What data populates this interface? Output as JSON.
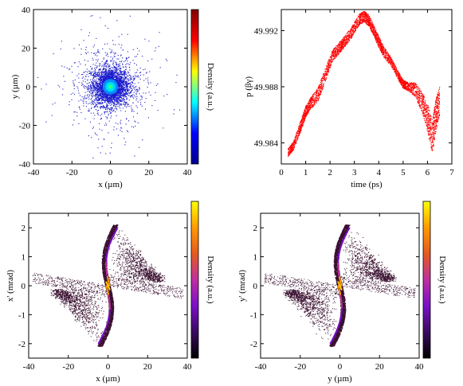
{
  "chart_data": [
    {
      "type": "scatter",
      "panel": "top-left",
      "title": "",
      "xlabel": "x (µm)",
      "ylabel": "y (µm)",
      "xlim": [
        -40,
        40
      ],
      "ylim": [
        -40,
        40
      ],
      "xticks": [
        "-40",
        "-20",
        "0",
        "20",
        "40"
      ],
      "yticks": [
        "-40",
        "-20",
        "0",
        "20",
        "40"
      ],
      "colorbar": {
        "label": "Density (a.u.)",
        "colormap": "jet",
        "colors": [
          "#00008f",
          "#0000ff",
          "#00ffff",
          "#ffff00",
          "#ff0000",
          "#800000"
        ]
      },
      "point_color": "#1a1acc",
      "distribution": {
        "center": [
          0,
          0
        ],
        "core_sigma": 3,
        "halo_sigma": 9,
        "extent": 38
      }
    },
    {
      "type": "scatter",
      "panel": "top-right",
      "title": "",
      "xlabel": "time (ps)",
      "ylabel": "p (βγ)",
      "xlim": [
        0,
        7
      ],
      "ylim": [
        49.9825,
        49.9935
      ],
      "xticks": [
        "0",
        "1",
        "2",
        "3",
        "4",
        "5",
        "6",
        "7"
      ],
      "yticks": [
        "49.984",
        "49.988",
        "49.992"
      ],
      "point_color": "#ff0000",
      "x": [
        0.28,
        0.5,
        0.8,
        1.0,
        1.2,
        1.5,
        1.8,
        2.1,
        2.4,
        2.6,
        2.9,
        3.2,
        3.4,
        3.6,
        3.8,
        4.0,
        4.2,
        4.5,
        4.8,
        5.0,
        5.2,
        5.5,
        5.8,
        6.0,
        6.2,
        6.35,
        6.5
      ],
      "y": [
        49.9833,
        49.9838,
        49.9852,
        49.9862,
        49.9868,
        49.9874,
        49.9888,
        49.9902,
        49.9908,
        49.9912,
        49.9919,
        49.9928,
        49.993,
        49.9927,
        49.992,
        49.9912,
        49.9905,
        49.9898,
        49.9888,
        49.9882,
        49.988,
        49.9878,
        49.9868,
        49.9858,
        49.9845,
        49.986,
        49.987
      ],
      "band_halfwidth": [
        0.0003,
        0.0003,
        0.0004,
        0.0004,
        0.0004,
        0.0005,
        0.0005,
        0.0004,
        0.0004,
        0.0004,
        0.0004,
        0.0004,
        0.0004,
        0.0004,
        0.0004,
        0.0004,
        0.0004,
        0.0003,
        0.0003,
        0.0003,
        0.0003,
        0.0005,
        0.0008,
        0.001,
        0.0012,
        0.0012,
        0.001
      ]
    },
    {
      "type": "scatter",
      "panel": "bottom-left",
      "title": "",
      "xlabel": "x (µm)",
      "ylabel": "x' (mrad)",
      "xlim": [
        -40,
        40
      ],
      "ylim": [
        -2.5,
        2.5
      ],
      "xticks": [
        "-40",
        "-20",
        "0",
        "20",
        "40"
      ],
      "yticks": [
        "-2",
        "-1",
        "0",
        "1",
        "2"
      ],
      "colorbar": {
        "label": "Density (a.u.)",
        "colormap": "gnuplot",
        "colors": [
          "#000000",
          "#3a0a5e",
          "#7a10c8",
          "#c02fa0",
          "#e65a1e",
          "#ff9a00",
          "#ffff00"
        ]
      },
      "point_color": "#3a1030",
      "distribution": {
        "arm_tip_x": 4,
        "arm_tip_y": 2.1,
        "arm_bulge": 5,
        "tail_reach_x": 38
      }
    },
    {
      "type": "scatter",
      "panel": "bottom-right",
      "title": "",
      "xlabel": "y (µm)",
      "ylabel": "y' (mrad)",
      "xlim": [
        -40,
        40
      ],
      "ylim": [
        -2.5,
        2.5
      ],
      "xticks": [
        "-40",
        "-20",
        "0",
        "20",
        "40"
      ],
      "yticks": [
        "-2",
        "-1",
        "0",
        "1",
        "2"
      ],
      "colorbar": {
        "label": "Density (a.u.)",
        "colormap": "gnuplot",
        "colors": [
          "#000000",
          "#3a0a5e",
          "#7a10c8",
          "#c02fa0",
          "#e65a1e",
          "#ff9a00",
          "#ffff00"
        ]
      },
      "point_color": "#3a1030",
      "distribution": {
        "arm_tip_x": 4,
        "arm_tip_y": 2.1,
        "arm_bulge": 5,
        "tail_reach_x": 38
      }
    }
  ]
}
